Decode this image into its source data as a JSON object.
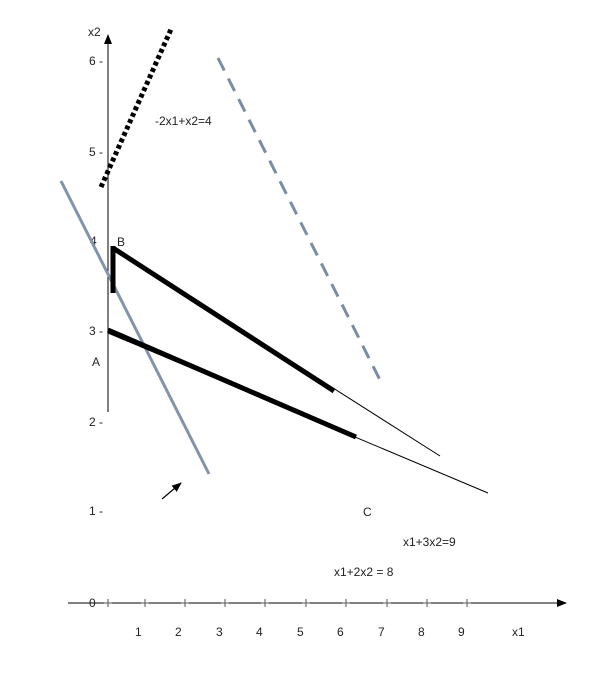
{
  "axes": {
    "x_label": "x1",
    "y_label": "x2",
    "x_ticks": [
      "1",
      "2",
      "3",
      "4",
      "5",
      "6",
      "7",
      "8",
      "9"
    ],
    "y_tick_labels": [
      "6 -",
      "5 -",
      "4",
      "3 -",
      "2 -",
      "1 -",
      "0"
    ]
  },
  "points": {
    "a": "A",
    "b": "B",
    "c": "C"
  },
  "equations": {
    "eq1": "-2x1+x2=4",
    "eq2": "x1+3x2=9",
    "eq3": "x1+2x2 = 8"
  },
  "colors": {
    "black": "#000000",
    "slate": "#8193ad",
    "slate_dashed": "#7a8ca6"
  }
}
